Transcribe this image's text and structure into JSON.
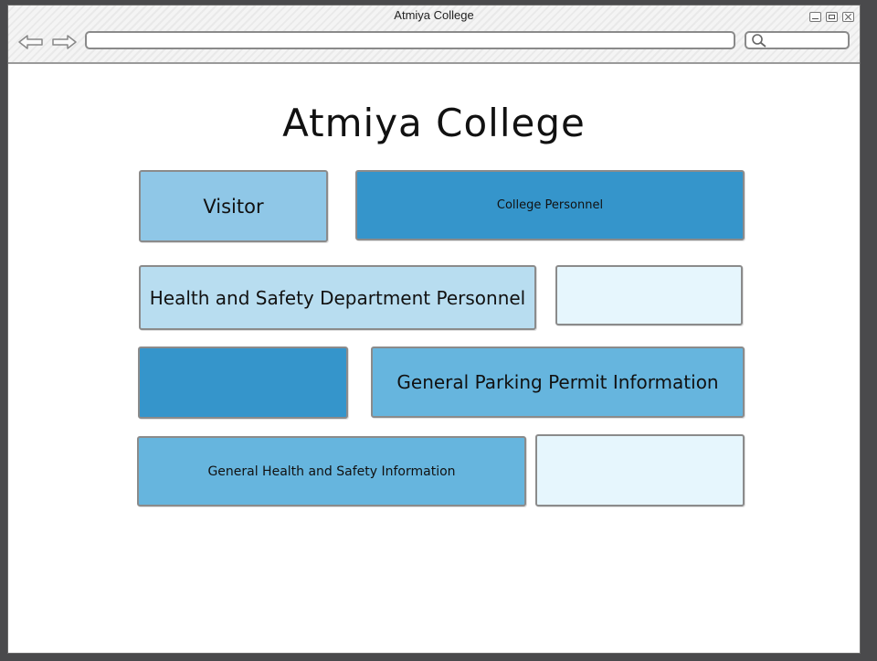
{
  "window": {
    "title": "Atmiya College"
  },
  "page": {
    "title": "Atmiya College"
  },
  "tiles": [
    {
      "label": "Visitor",
      "color": "#8fc7e7"
    },
    {
      "label": "College Personnel",
      "color": "#3595cb"
    },
    {
      "label": "Health and Safety Department Personnel",
      "color": "#b8ddf0"
    },
    {
      "label": "",
      "color": "#e6f6fd"
    },
    {
      "label": "",
      "color": "#3595cb"
    },
    {
      "label": "General Parking Permit Information",
      "color": "#66b5de"
    },
    {
      "label": "General Health and Safety Information",
      "color": "#66b5de"
    },
    {
      "label": "",
      "color": "#e6f6fd"
    }
  ]
}
